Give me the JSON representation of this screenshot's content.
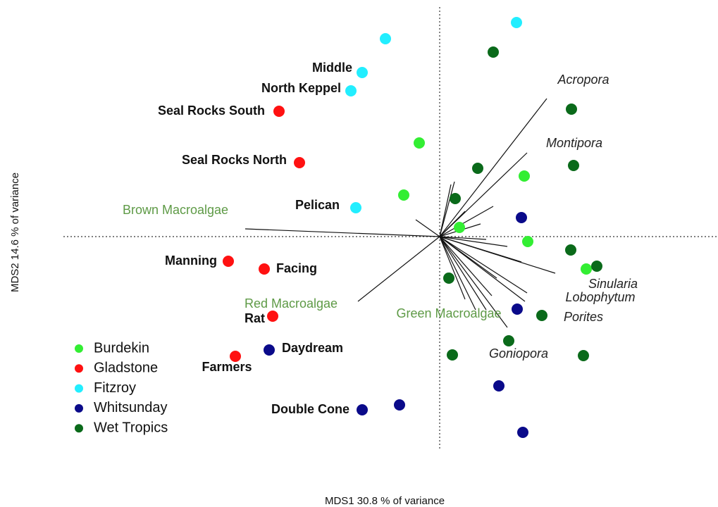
{
  "chart_data": {
    "type": "scatter",
    "xlabel": "MDS1   30.8 % of variance",
    "ylabel": "MDS2   14.6 % of variance",
    "xlim": [
      -1.335,
      0.9875
    ],
    "ylim": [
      -0.76,
      0.815
    ],
    "legend": "bottom-left",
    "series": [
      {
        "name": "Burdekin",
        "color": "#33ee33",
        "x": [
          -0.0725,
          -0.1275,
          0.3,
          0.07,
          0.3125,
          0.52
        ],
        "values": [
          0.3325,
          0.1475,
          0.215,
          0.0325,
          -0.0175,
          -0.115
        ],
        "labels": [
          null,
          null,
          null,
          null,
          null,
          null
        ]
      },
      {
        "name": "Gladstone",
        "color": "#ff1111",
        "x": [
          -0.57,
          -0.4975,
          -0.75,
          -0.6225,
          -0.5925,
          -0.725
        ],
        "values": [
          0.445,
          0.2625,
          -0.0875,
          -0.115,
          -0.2825,
          -0.425
        ],
        "labels": [
          "Seal Rocks South",
          "Seal Rocks North",
          "Manning",
          "Facing",
          "Rat",
          "Farmers"
        ]
      },
      {
        "name": "Fitzroy",
        "color": "#22eeff",
        "x": [
          -0.1925,
          -0.275,
          -0.315,
          -0.2975,
          0.2725
        ],
        "values": [
          0.7025,
          0.5825,
          0.5175,
          0.1025,
          0.76
        ],
        "labels": [
          null,
          "Middle",
          "North Keppel",
          "Pelican",
          null
        ]
      },
      {
        "name": "Whitsunday",
        "color": "#0a0a8a",
        "x": [
          0.29,
          0.275,
          -0.605,
          -0.1425,
          -0.275,
          0.21,
          0.295
        ],
        "values": [
          0.0675,
          -0.2575,
          -0.4025,
          -0.5975,
          -0.615,
          -0.53,
          -0.695
        ],
        "labels": [
          null,
          null,
          "Daydream",
          null,
          "Double Cone",
          null,
          null
        ]
      },
      {
        "name": "Wet Tropics",
        "color": "#0a6a1a",
        "x": [
          0.19,
          0.4675,
          0.475,
          0.135,
          0.055,
          0.465,
          0.5575,
          0.0325,
          0.245,
          0.3625,
          0.045,
          0.51
        ],
        "values": [
          0.655,
          0.4525,
          0.2525,
          0.2425,
          0.135,
          -0.0475,
          -0.105,
          -0.1475,
          -0.37,
          -0.28,
          -0.42,
          -0.4225
        ],
        "labels": [
          null,
          null,
          null,
          null,
          null,
          null,
          null,
          null,
          null,
          null,
          null,
          null
        ]
      }
    ],
    "vectors": [
      {
        "name": "Acropora",
        "x": 0.38,
        "y": 0.49,
        "label_color": "#222222"
      },
      {
        "name": "Montipora",
        "x": 0.31,
        "y": 0.2975,
        "label_color": "#222222"
      },
      {
        "name": "Sinularia",
        "x": 0.41,
        "y": -0.13,
        "label_color": "#222222"
      },
      {
        "name": "Lobophytum",
        "x": 0.31,
        "y": -0.2,
        "label_color": "#222222"
      },
      {
        "name": "Porites",
        "x": 0.3025,
        "y": -0.23,
        "label_color": "#222222"
      },
      {
        "name": "Goniopora",
        "x": 0.24,
        "y": -0.3225,
        "label_color": "#222222"
      },
      {
        "name": "Brown Macroalgae",
        "x": -0.69,
        "y": 0.0275,
        "label_color": "#5e9a46"
      },
      {
        "name": "Red Macroalgae",
        "x": -0.29,
        "y": -0.23,
        "label_color": "#5e9a46"
      },
      {
        "name": "Green Macroalgae",
        "x": 0.165,
        "y": -0.26,
        "label_color": "#5e9a46"
      },
      {
        "name": null,
        "x": 0.0525,
        "y": 0.195
      },
      {
        "name": null,
        "x": 0.04,
        "y": 0.185
      },
      {
        "name": null,
        "x": 0.09,
        "y": 0.09
      },
      {
        "name": null,
        "x": 0.19,
        "y": 0.1075
      },
      {
        "name": null,
        "x": 0.145,
        "y": 0.045
      },
      {
        "name": null,
        "x": 0.24,
        "y": -0.035
      },
      {
        "name": null,
        "x": 0.29,
        "y": -0.09
      },
      {
        "name": null,
        "x": 0.2025,
        "y": -0.1475
      },
      {
        "name": null,
        "x": 0.185,
        "y": -0.21
      },
      {
        "name": null,
        "x": 0.1275,
        "y": -0.26
      },
      {
        "name": null,
        "x": 0.09,
        "y": -0.2225
      },
      {
        "name": null,
        "x": -0.085,
        "y": 0.06
      },
      {
        "name": null,
        "x": 0.165,
        "y": -0.01
      }
    ]
  }
}
